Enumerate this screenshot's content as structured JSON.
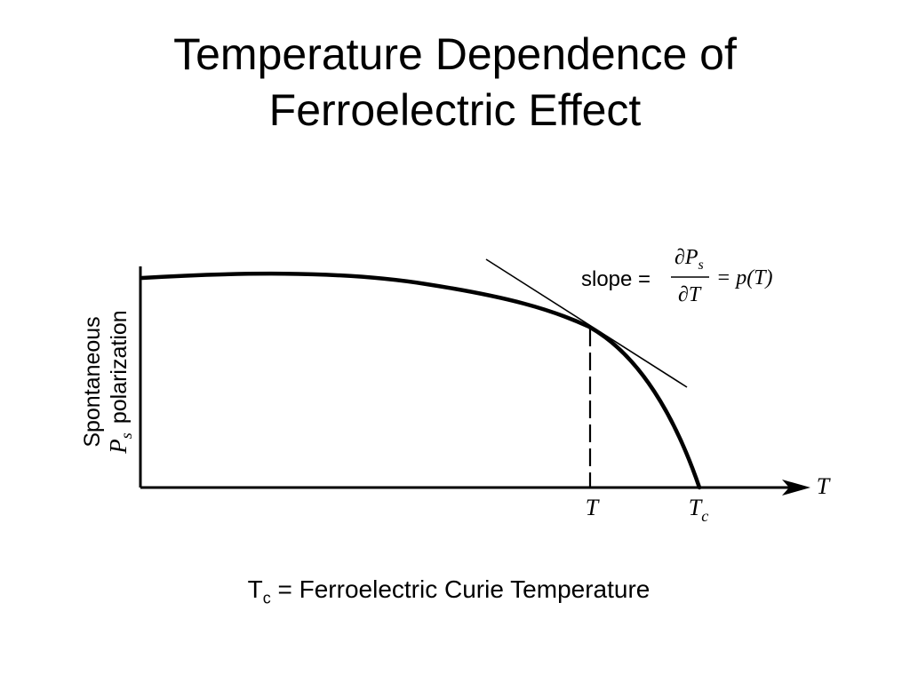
{
  "title": {
    "line1": "Temperature Dependence of",
    "line2": "Ferroelectric Effect"
  },
  "diagram": {
    "y_axis_label_line1": "Spontaneous",
    "y_axis_label_symbol": "P",
    "y_axis_label_symbol_sub": "s",
    "y_axis_label_line2": "polarization",
    "x_axis_label": "T",
    "tick_T": "T",
    "tick_Tc": "T",
    "tick_Tc_sub": "c",
    "slope_word": "slope =",
    "slope_numerator": "∂P",
    "slope_numerator_sub": "s",
    "slope_denominator": "∂T",
    "slope_rhs": "= p(T)",
    "colors": {
      "line": "#000000"
    }
  },
  "caption": {
    "symbol": "T",
    "symbol_sub": "c",
    "text": " = Ferroelectric Curie Temperature"
  }
}
